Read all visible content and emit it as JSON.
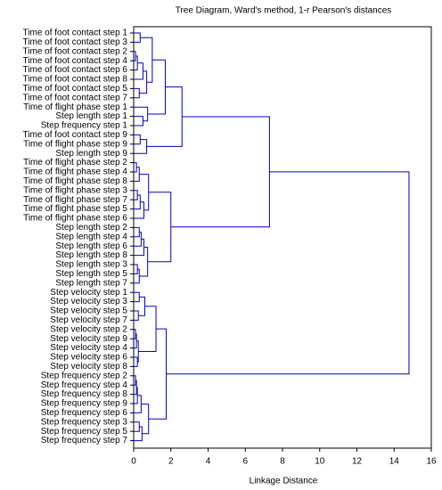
{
  "chart_data": {
    "type": "dendrogram",
    "title": "Tree Diagram, Ward's method, 1-r Pearson's distances",
    "x_label": "Linkage Distance",
    "color": "#0000cc",
    "xlim": [
      0,
      16
    ],
    "xticks": [
      0,
      2,
      4,
      6,
      8,
      10,
      12,
      14,
      16
    ],
    "leaves": [
      "Time of foot contact step 1",
      "Time of foot contact step 3",
      "Time of foot contact step 2",
      "Time of foot contact step 4",
      "Time of foot contact step 6",
      "Time of foot contact step 8",
      "Time of foot contact step 5",
      "Time of foot contact step 7",
      "Time of flight phase step 1",
      "Step length step 1",
      "Step frequency step 1",
      "Time of foot contact step 9",
      "Time of flight phase step 9",
      "Step length step 9",
      "Time of flight phase step 2",
      "Time of flight phase step 4",
      "Time of flight phase step 8",
      "Time of flight phase step 3",
      "Time of flight phase step 7",
      "Time of flight phase step 5",
      "Time of flight phase step 6",
      "Step length step 2",
      "Step length step 4",
      "Step length step 6",
      "Step length step 8",
      "Step length step 3",
      "Step length step 5",
      "Step length step 7",
      "Step velocity step 1",
      "Step velocity step 3",
      "Step velocity step 5",
      "Step velocity step 7",
      "Step velocity step 2",
      "Step velocity step 9",
      "Step velocity step 4",
      "Step velocity step 6",
      "Step velocity step 8",
      "Step frequency step 2",
      "Step frequency step 4",
      "Step frequency step 8",
      "Step frequency step 9",
      "Step frequency step 6",
      "Step frequency step 3",
      "Step frequency step 5",
      "Step frequency step 7"
    ],
    "links": [
      {
        "a": 0,
        "b": 1,
        "height": 0.35
      },
      {
        "a": 2,
        "b": 3,
        "height": 0.1
      },
      {
        "a": 46,
        "b": 4,
        "height": 0.2
      },
      {
        "a": 47,
        "b": 5,
        "height": 0.5
      },
      {
        "a": 6,
        "b": 7,
        "height": 0.3
      },
      {
        "a": 48,
        "b": 49,
        "height": 0.7
      },
      {
        "a": 45,
        "b": 50,
        "height": 1.0
      },
      {
        "a": 9,
        "b": 10,
        "height": 0.5
      },
      {
        "a": 8,
        "b": 52,
        "height": 0.75
      },
      {
        "a": 51,
        "b": 53,
        "height": 1.7
      },
      {
        "a": 11,
        "b": 12,
        "height": 0.35
      },
      {
        "a": 55,
        "b": 13,
        "height": 0.7
      },
      {
        "a": 54,
        "b": 56,
        "height": 2.6
      },
      {
        "a": 14,
        "b": 15,
        "height": 0.15
      },
      {
        "a": 58,
        "b": 16,
        "height": 0.3
      },
      {
        "a": 17,
        "b": 18,
        "height": 0.2
      },
      {
        "a": 60,
        "b": 19,
        "height": 0.35
      },
      {
        "a": 61,
        "b": 20,
        "height": 0.55
      },
      {
        "a": 59,
        "b": 62,
        "height": 0.8
      },
      {
        "a": 21,
        "b": 22,
        "height": 0.3
      },
      {
        "a": 64,
        "b": 23,
        "height": 0.4
      },
      {
        "a": 65,
        "b": 24,
        "height": 0.55
      },
      {
        "a": 25,
        "b": 26,
        "height": 0.2
      },
      {
        "a": 67,
        "b": 27,
        "height": 0.3
      },
      {
        "a": 66,
        "b": 68,
        "height": 0.75
      },
      {
        "a": 63,
        "b": 69,
        "height": 2.0
      },
      {
        "a": 57,
        "b": 70,
        "height": 7.3
      },
      {
        "a": 28,
        "b": 29,
        "height": 0.3
      },
      {
        "a": 30,
        "b": 31,
        "height": 0.25
      },
      {
        "a": 72,
        "b": 73,
        "height": 0.6
      },
      {
        "a": 32,
        "b": 33,
        "height": 0.1
      },
      {
        "a": 75,
        "b": 34,
        "height": 0.15
      },
      {
        "a": 35,
        "b": 36,
        "height": 0.2
      },
      {
        "a": 76,
        "b": 77,
        "height": 0.25
      },
      {
        "a": 74,
        "b": 78,
        "height": 1.2
      },
      {
        "a": 37,
        "b": 38,
        "height": 0.1
      },
      {
        "a": 80,
        "b": 39,
        "height": 0.15
      },
      {
        "a": 81,
        "b": 40,
        "height": 0.2
      },
      {
        "a": 82,
        "b": 41,
        "height": 0.4
      },
      {
        "a": 42,
        "b": 43,
        "height": 0.3
      },
      {
        "a": 84,
        "b": 44,
        "height": 0.45
      },
      {
        "a": 83,
        "b": 85,
        "height": 0.8
      },
      {
        "a": 79,
        "b": 86,
        "height": 1.75
      },
      {
        "a": 71,
        "b": 87,
        "height": 14.8
      }
    ]
  }
}
